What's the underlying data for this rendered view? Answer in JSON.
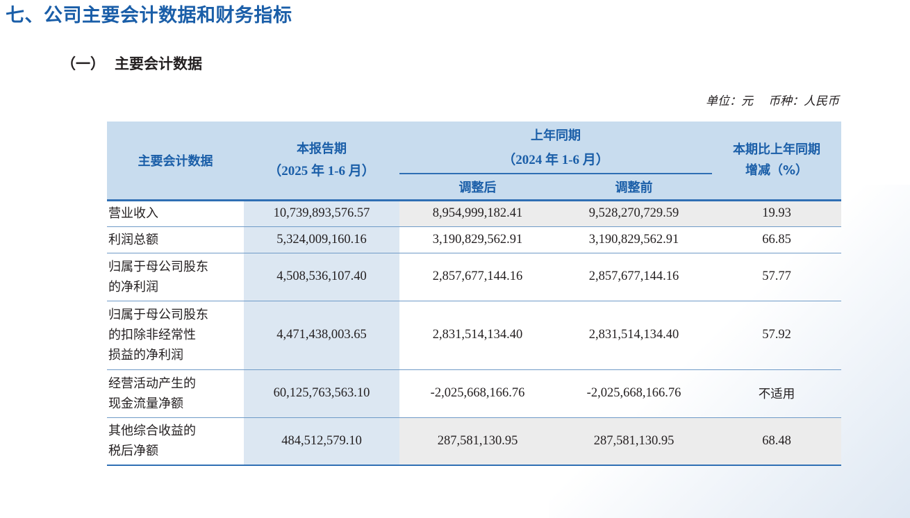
{
  "section_title": "七、公司主要会计数据和财务指标",
  "subsection": {
    "number": "（一）",
    "title": "主要会计数据"
  },
  "unit_note": {
    "unit": "单位：元",
    "currency": "币种：人民币"
  },
  "table": {
    "headers": {
      "item": "主要会计数据",
      "current": "本报告期",
      "current_period": "（2025 年 1-6 月）",
      "prior": "上年同期",
      "prior_period": "（2024 年 1-6 月）",
      "prior_adjusted": "调整后",
      "prior_unadjusted": "调整前",
      "change_line1": "本期比上年同期",
      "change_line2": "增减（%）"
    },
    "rows": [
      {
        "label": [
          "营业收入"
        ],
        "current": "10,739,893,576.57",
        "adjusted": "8,954,999,182.41",
        "unadjusted": "9,528,270,729.59",
        "change": "19.93"
      },
      {
        "label": [
          "利润总额"
        ],
        "current": "5,324,009,160.16",
        "adjusted": "3,190,829,562.91",
        "unadjusted": "3,190,829,562.91",
        "change": "66.85"
      },
      {
        "label": [
          "归属于母公司股东",
          "的净利润"
        ],
        "current": "4,508,536,107.40",
        "adjusted": "2,857,677,144.16",
        "unadjusted": "2,857,677,144.16",
        "change": "57.77"
      },
      {
        "label": [
          "归属于母公司股东",
          "的扣除非经常性",
          "损益的净利润"
        ],
        "current": "4,471,438,003.65",
        "adjusted": "2,831,514,134.40",
        "unadjusted": "2,831,514,134.40",
        "change": "57.92"
      },
      {
        "label": [
          "经营活动产生的",
          "现金流量净额"
        ],
        "current": "60,125,763,563.10",
        "adjusted": "-2,025,668,166.76",
        "unadjusted": "-2,025,668,166.76",
        "change": "不适用"
      },
      {
        "label": [
          "其他综合收益的",
          "税后净额"
        ],
        "current": "484,512,579.10",
        "adjusted": "287,581,130.95",
        "unadjusted": "287,581,130.95",
        "change": "68.48"
      }
    ]
  }
}
